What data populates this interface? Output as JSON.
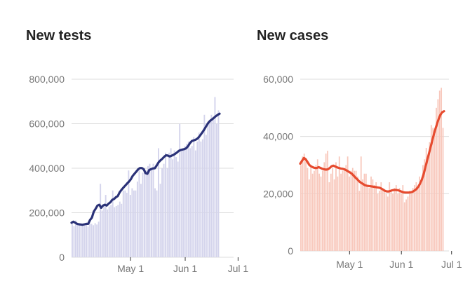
{
  "chart_data": [
    {
      "type": "bar",
      "title": "New tests",
      "xlabel": "",
      "ylabel": "",
      "ylim": [
        0,
        800000
      ],
      "yticks": [
        {
          "value": 0,
          "label": "0"
        },
        {
          "value": 200000,
          "label": "200,000"
        },
        {
          "value": 400000,
          "label": "400,000"
        },
        {
          "value": 600000,
          "label": "600,000"
        },
        {
          "value": 800000,
          "label": "800,000"
        }
      ],
      "xticks": [
        {
          "index": 33,
          "label": "May 1"
        },
        {
          "index": 64,
          "label": "Jun 1"
        },
        {
          "index": 94,
          "label": "Jul 1"
        }
      ],
      "bar_color": "#d4d4ec",
      "line_color": "#2b3278",
      "values": [
        150000,
        140000,
        165000,
        155000,
        148000,
        150000,
        142000,
        152000,
        146000,
        138000,
        152000,
        150000,
        144000,
        153000,
        147000,
        160000,
        330000,
        210000,
        235000,
        280000,
        215000,
        228000,
        235000,
        300000,
        225000,
        230000,
        235000,
        250000,
        240000,
        300000,
        300000,
        290000,
        390000,
        280000,
        310000,
        300000,
        300000,
        340000,
        390000,
        330000,
        380000,
        400000,
        390000,
        410000,
        420000,
        400000,
        420000,
        310000,
        300000,
        490000,
        330000,
        400000,
        420000,
        470000,
        400000,
        470000,
        490000,
        440000,
        480000,
        450000,
        430000,
        600000,
        480000,
        480000,
        500000,
        510000,
        520000,
        490000,
        500000,
        540000,
        480000,
        520000,
        560000,
        520000,
        530000,
        640000,
        550000,
        600000,
        610000,
        640000,
        630000,
        720000,
        600000,
        660000
      ],
      "moving_average": [
        155000,
        160000,
        155000,
        150000,
        148000,
        147000,
        146000,
        148000,
        150000,
        150000,
        168000,
        178000,
        205000,
        218000,
        232000,
        236000,
        222000,
        232000,
        236000,
        232000,
        241000,
        247000,
        258000,
        262000,
        270000,
        275000,
        292000,
        303000,
        313000,
        322000,
        331000,
        340000,
        350000,
        365000,
        375000,
        385000,
        395000,
        401000,
        401000,
        395000,
        378000,
        375000,
        392000,
        396000,
        399000,
        400000,
        412000,
        426000,
        435000,
        442000,
        451000,
        458000,
        457000,
        453000,
        456000,
        460000,
        465000,
        471000,
        478000,
        482000,
        484000,
        486000,
        490000,
        500000,
        513000,
        522000,
        525000,
        528000,
        533000,
        542000,
        553000,
        565000,
        578000,
        592000,
        605000,
        614000,
        620000,
        627000,
        634000,
        640000,
        645000
      ]
    },
    {
      "type": "bar",
      "title": "New cases",
      "xlabel": "",
      "ylabel": "",
      "ylim": [
        0,
        60000
      ],
      "yticks": [
        {
          "value": 0,
          "label": "0"
        },
        {
          "value": 20000,
          "label": "20,000"
        },
        {
          "value": 40000,
          "label": "40,000"
        },
        {
          "value": 60000,
          "label": "60,000"
        }
      ],
      "xticks": [
        {
          "index": 29,
          "label": "May 1"
        },
        {
          "index": 60,
          "label": "Jun 1"
        },
        {
          "index": 90,
          "label": "Jul 1"
        }
      ],
      "bar_color": "#f8c8bc",
      "line_color": "#e64b2f",
      "values": [
        30000,
        33000,
        34000,
        32000,
        29000,
        25000,
        30000,
        27000,
        28000,
        30000,
        32000,
        27000,
        26000,
        28000,
        31000,
        34000,
        35000,
        24000,
        27000,
        29000,
        25000,
        31000,
        26000,
        33000,
        27000,
        28000,
        29000,
        30000,
        33000,
        26000,
        28000,
        29000,
        28000,
        28000,
        26000,
        21000,
        33000,
        25000,
        27000,
        27000,
        23000,
        22000,
        26000,
        25000,
        23000,
        24000,
        20000,
        21000,
        24000,
        21000,
        21000,
        20000,
        19000,
        24000,
        21000,
        20000,
        22000,
        23000,
        20000,
        22000,
        20000,
        23000,
        17000,
        18000,
        19000,
        21000,
        20000,
        22000,
        23000,
        24000,
        22000,
        26000,
        25000,
        30000,
        32000,
        36000,
        32000,
        38000,
        44000,
        43000,
        41000,
        50000,
        53000,
        56000,
        57000,
        43000
      ],
      "moving_average": [
        30500,
        31500,
        32500,
        32000,
        31000,
        30000,
        29500,
        29200,
        29000,
        29000,
        29300,
        29000,
        28700,
        28500,
        28400,
        28500,
        29000,
        29600,
        29800,
        29500,
        29200,
        29000,
        28800,
        28700,
        28500,
        28200,
        27800,
        27400,
        27000,
        26300,
        25600,
        25000,
        24300,
        23800,
        23400,
        23000,
        22800,
        22700,
        22600,
        22500,
        22400,
        22300,
        22200,
        22100,
        21800,
        21400,
        21000,
        20800,
        20800,
        21000,
        21200,
        21300,
        21300,
        21200,
        21000,
        20700,
        20500,
        20400,
        20400,
        20400,
        20500,
        20700,
        21100,
        21600,
        22400,
        23500,
        25000,
        27000,
        29500,
        32000,
        34500,
        37000,
        39500,
        42000,
        44000,
        46000,
        47500,
        48500,
        48800
      ]
    }
  ]
}
